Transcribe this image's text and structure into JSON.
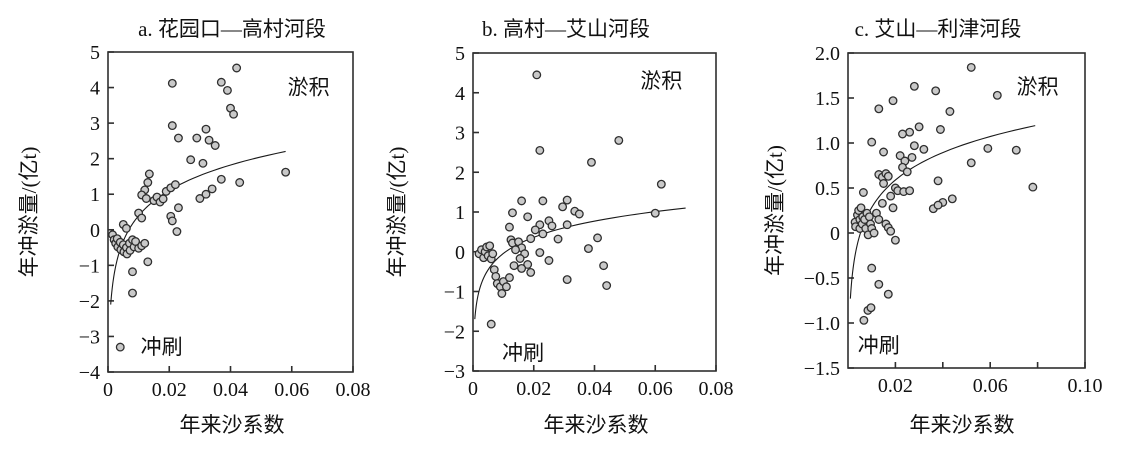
{
  "figure_labels": {
    "xlabel": "年来沙系数",
    "ylabel": "年冲淤量/(亿t)",
    "deposition": "淤积",
    "scour": "冲刷"
  },
  "colors": {
    "background": "#ffffff",
    "marker_fill": "#c9c9c9",
    "marker_stroke": "#2e2e2e",
    "curve": "#1a1a1a",
    "axis": "#2f2f2f",
    "text": "#111111"
  },
  "chart_data": [
    {
      "id": "a",
      "type": "scatter",
      "title": "a. 花园口—高村河段",
      "xlabel": "年来沙系数",
      "ylabel": "年冲淤量/(亿t)",
      "xlim": [
        0,
        0.08
      ],
      "ylim": [
        -4,
        5
      ],
      "grid": false,
      "legend": "none",
      "x_ticks": [
        {
          "v": 0,
          "label": "0"
        },
        {
          "v": 0.02,
          "label": "0.02"
        },
        {
          "v": 0.04,
          "label": "0.04"
        },
        {
          "v": 0.06,
          "label": "0.06"
        },
        {
          "v": 0.08,
          "label": "0.08"
        }
      ],
      "y_ticks": [
        {
          "v": 5,
          "label": "5"
        },
        {
          "v": 4,
          "label": "4"
        },
        {
          "v": 3,
          "label": "3"
        },
        {
          "v": 2,
          "label": "2"
        },
        {
          "v": 1,
          "label": "1"
        },
        {
          "v": 0,
          "label": "0"
        },
        {
          "v": -1,
          "label": "−1"
        },
        {
          "v": -2,
          "label": "−2"
        },
        {
          "v": -3,
          "label": "−3"
        },
        {
          "v": -4,
          "label": "−4"
        }
      ],
      "points": [
        [
          0.021,
          4.12
        ],
        [
          0.037,
          4.15
        ],
        [
          0.042,
          4.55
        ],
        [
          0.039,
          3.92
        ],
        [
          0.04,
          3.42
        ],
        [
          0.041,
          3.25
        ],
        [
          0.021,
          2.93
        ],
        [
          0.023,
          2.58
        ],
        [
          0.029,
          2.58
        ],
        [
          0.032,
          2.83
        ],
        [
          0.033,
          2.52
        ],
        [
          0.035,
          2.37
        ],
        [
          0.027,
          1.97
        ],
        [
          0.031,
          1.87
        ],
        [
          0.034,
          1.15
        ],
        [
          0.037,
          1.42
        ],
        [
          0.043,
          1.33
        ],
        [
          0.058,
          1.62
        ],
        [
          0.0135,
          1.57
        ],
        [
          0.013,
          1.33
        ],
        [
          0.012,
          1.12
        ],
        [
          0.011,
          0.98
        ],
        [
          0.0125,
          0.88
        ],
        [
          0.015,
          0.82
        ],
        [
          0.016,
          0.92
        ],
        [
          0.017,
          0.78
        ],
        [
          0.018,
          0.87
        ],
        [
          0.019,
          1.08
        ],
        [
          0.0205,
          1.18
        ],
        [
          0.022,
          1.27
        ],
        [
          0.03,
          0.88
        ],
        [
          0.032,
          1.0
        ],
        [
          0.023,
          0.62
        ],
        [
          0.0205,
          0.38
        ],
        [
          0.021,
          0.25
        ],
        [
          0.0225,
          -0.05
        ],
        [
          0.01,
          0.47
        ],
        [
          0.011,
          0.33
        ],
        [
          0.005,
          0.15
        ],
        [
          0.006,
          0.04
        ],
        [
          0.0015,
          -0.14
        ],
        [
          0.002,
          -0.28
        ],
        [
          0.0025,
          -0.38
        ],
        [
          0.003,
          -0.25
        ],
        [
          0.0032,
          -0.48
        ],
        [
          0.004,
          -0.35
        ],
        [
          0.0042,
          -0.56
        ],
        [
          0.005,
          -0.42
        ],
        [
          0.0052,
          -0.62
        ],
        [
          0.006,
          -0.5
        ],
        [
          0.0062,
          -0.68
        ],
        [
          0.007,
          -0.38
        ],
        [
          0.0072,
          -0.58
        ],
        [
          0.008,
          -0.28
        ],
        [
          0.0085,
          -0.48
        ],
        [
          0.009,
          -0.33
        ],
        [
          0.01,
          -0.52
        ],
        [
          0.011,
          -0.45
        ],
        [
          0.012,
          -0.38
        ],
        [
          0.013,
          -0.9
        ],
        [
          0.008,
          -1.18
        ],
        [
          0.008,
          -1.78
        ],
        [
          0.004,
          -3.3
        ]
      ],
      "trend": {
        "type": "log",
        "a": 1.028,
        "b": 5.13,
        "x_start": 0.00088,
        "x_end": 0.058
      },
      "annotations": [
        {
          "text": "淤积",
          "x": 0.0655,
          "y": 4.0
        },
        {
          "text": "冲刷",
          "x": 0.0175,
          "y": -3.3
        }
      ]
    },
    {
      "id": "b",
      "type": "scatter",
      "title": "b. 高村—艾山河段",
      "xlabel": "年来沙系数",
      "ylabel": "年冲淤量/(亿t)",
      "xlim": [
        0,
        0.08
      ],
      "ylim": [
        -3,
        5
      ],
      "grid": false,
      "legend": "none",
      "x_ticks": [
        {
          "v": 0,
          "label": "0"
        },
        {
          "v": 0.02,
          "label": "0.02"
        },
        {
          "v": 0.04,
          "label": "0.04"
        },
        {
          "v": 0.06,
          "label": "0.06"
        },
        {
          "v": 0.08,
          "label": "0.08"
        }
      ],
      "y_ticks": [
        {
          "v": 5,
          "label": "5"
        },
        {
          "v": 4,
          "label": "4"
        },
        {
          "v": 3,
          "label": "3"
        },
        {
          "v": 2,
          "label": "2"
        },
        {
          "v": 1,
          "label": "1"
        },
        {
          "v": 0,
          "label": "0"
        },
        {
          "v": -1,
          "label": "−1"
        },
        {
          "v": -2,
          "label": "−2"
        },
        {
          "v": -3,
          "label": "−3"
        }
      ],
      "points": [
        [
          0.021,
          4.45
        ],
        [
          0.048,
          2.8
        ],
        [
          0.022,
          2.55
        ],
        [
          0.039,
          2.25
        ],
        [
          0.062,
          1.7
        ],
        [
          0.06,
          0.97
        ],
        [
          0.016,
          1.28
        ],
        [
          0.023,
          1.28
        ],
        [
          0.0295,
          1.13
        ],
        [
          0.031,
          1.3
        ],
        [
          0.0335,
          1.02
        ],
        [
          0.013,
          0.98
        ],
        [
          0.018,
          0.88
        ],
        [
          0.035,
          0.95
        ],
        [
          0.012,
          0.62
        ],
        [
          0.022,
          0.68
        ],
        [
          0.025,
          0.78
        ],
        [
          0.026,
          0.65
        ],
        [
          0.031,
          0.68
        ],
        [
          0.0205,
          0.55
        ],
        [
          0.023,
          0.45
        ],
        [
          0.019,
          0.33
        ],
        [
          0.028,
          0.32
        ],
        [
          0.041,
          0.35
        ],
        [
          0.038,
          0.08
        ],
        [
          0.0125,
          0.3
        ],
        [
          0.013,
          0.22
        ],
        [
          0.015,
          0.25
        ],
        [
          0.016,
          0.1
        ],
        [
          0.014,
          0.05
        ],
        [
          0.017,
          -0.05
        ],
        [
          0.0155,
          -0.17
        ],
        [
          0.022,
          -0.02
        ],
        [
          0.018,
          -0.32
        ],
        [
          0.0135,
          -0.35
        ],
        [
          0.016,
          -0.42
        ],
        [
          0.019,
          -0.52
        ],
        [
          0.025,
          -0.22
        ],
        [
          0.031,
          -0.7
        ],
        [
          0.043,
          -0.35
        ],
        [
          0.044,
          -0.85
        ],
        [
          0.002,
          -0.05
        ],
        [
          0.0028,
          0.05
        ],
        [
          0.0035,
          -0.15
        ],
        [
          0.004,
          0.0
        ],
        [
          0.0045,
          0.12
        ],
        [
          0.005,
          -0.1
        ],
        [
          0.0055,
          0.15
        ],
        [
          0.006,
          -0.18
        ],
        [
          0.0065,
          -0.05
        ],
        [
          0.007,
          -0.45
        ],
        [
          0.0075,
          -0.62
        ],
        [
          0.008,
          -0.8
        ],
        [
          0.009,
          -0.88
        ],
        [
          0.0095,
          -1.05
        ],
        [
          0.01,
          -0.75
        ],
        [
          0.011,
          -0.88
        ],
        [
          0.012,
          -0.65
        ],
        [
          0.006,
          -1.82
        ]
      ],
      "trend": {
        "type": "log",
        "a": 0.587,
        "b": 2.66,
        "x_start": 0.0006,
        "x_end": 0.07
      },
      "annotations": [
        {
          "text": "淤积",
          "x": 0.062,
          "y": 4.3
        },
        {
          "text": "冲刷",
          "x": 0.0165,
          "y": -2.55
        }
      ]
    },
    {
      "id": "c",
      "type": "scatter",
      "title": "c. 艾山—利津河段",
      "xlabel": "年来沙系数",
      "ylabel": "年冲淤量/(亿t)",
      "xlim": [
        0,
        0.1
      ],
      "ylim": [
        -1.5,
        2.0
      ],
      "grid": false,
      "legend": "none",
      "x_ticks": [
        {
          "v": 0.02,
          "label": "0.02"
        },
        {
          "v": 0.04,
          "label": ""
        },
        {
          "v": 0.06,
          "label": "0.06"
        },
        {
          "v": 0.08,
          "label": ""
        },
        {
          "v": 0.1,
          "label": "0.10"
        }
      ],
      "y_ticks": [
        {
          "v": 2.0,
          "label": "2.0"
        },
        {
          "v": 1.5,
          "label": "1.5"
        },
        {
          "v": 1.0,
          "label": "1.0"
        },
        {
          "v": 0.5,
          "label": "0.5"
        },
        {
          "v": 0,
          "label": "0"
        },
        {
          "v": -0.5,
          "label": "−0.5"
        },
        {
          "v": -1.0,
          "label": "−1.0"
        },
        {
          "v": -1.5,
          "label": "−1.5"
        }
      ],
      "points": [
        [
          0.052,
          1.84
        ],
        [
          0.028,
          1.63
        ],
        [
          0.037,
          1.58
        ],
        [
          0.063,
          1.53
        ],
        [
          0.019,
          1.47
        ],
        [
          0.013,
          1.38
        ],
        [
          0.043,
          1.35
        ],
        [
          0.03,
          1.18
        ],
        [
          0.026,
          1.12
        ],
        [
          0.023,
          1.1
        ],
        [
          0.039,
          1.15
        ],
        [
          0.01,
          1.01
        ],
        [
          0.028,
          0.97
        ],
        [
          0.032,
          0.93
        ],
        [
          0.059,
          0.94
        ],
        [
          0.071,
          0.92
        ],
        [
          0.015,
          0.9
        ],
        [
          0.022,
          0.86
        ],
        [
          0.027,
          0.84
        ],
        [
          0.024,
          0.8
        ],
        [
          0.052,
          0.78
        ],
        [
          0.023,
          0.73
        ],
        [
          0.025,
          0.68
        ],
        [
          0.013,
          0.65
        ],
        [
          0.0145,
          0.62
        ],
        [
          0.016,
          0.66
        ],
        [
          0.017,
          0.63
        ],
        [
          0.015,
          0.55
        ],
        [
          0.038,
          0.58
        ],
        [
          0.078,
          0.51
        ],
        [
          0.02,
          0.5
        ],
        [
          0.021,
          0.47
        ],
        [
          0.0235,
          0.46
        ],
        [
          0.026,
          0.47
        ],
        [
          0.0065,
          0.45
        ],
        [
          0.018,
          0.41
        ],
        [
          0.0145,
          0.33
        ],
        [
          0.044,
          0.38
        ],
        [
          0.04,
          0.34
        ],
        [
          0.036,
          0.27
        ],
        [
          0.038,
          0.31
        ],
        [
          0.019,
          0.28
        ],
        [
          0.02,
          -0.08
        ],
        [
          0.003,
          0.12
        ],
        [
          0.0032,
          0.07
        ],
        [
          0.004,
          0.2
        ],
        [
          0.0045,
          0.25
        ],
        [
          0.005,
          0.15
        ],
        [
          0.005,
          0.05
        ],
        [
          0.0055,
          0.28
        ],
        [
          0.006,
          0.1
        ],
        [
          0.0062,
          0.18
        ],
        [
          0.007,
          0.15
        ],
        [
          0.0075,
          0.05
        ],
        [
          0.008,
          0.22
        ],
        [
          0.0085,
          -0.02
        ],
        [
          0.009,
          0.18
        ],
        [
          0.0095,
          0.1
        ],
        [
          0.01,
          0.05
        ],
        [
          0.011,
          0.0
        ],
        [
          0.012,
          0.22
        ],
        [
          0.013,
          0.15
        ],
        [
          0.016,
          0.1
        ],
        [
          0.017,
          0.06
        ],
        [
          0.018,
          0.02
        ],
        [
          0.01,
          -0.39
        ],
        [
          0.013,
          -0.57
        ],
        [
          0.017,
          -0.68
        ],
        [
          0.0084,
          -0.86
        ],
        [
          0.0097,
          -0.83
        ],
        [
          0.0067,
          -0.97
        ]
      ],
      "trend": {
        "type": "log",
        "a": 0.44,
        "b": 2.31,
        "x_start": 0.001,
        "x_end": 0.079
      },
      "annotations": [
        {
          "text": "淤积",
          "x": 0.08,
          "y": 1.62
        },
        {
          "text": "冲刷",
          "x": 0.013,
          "y": -1.25
        }
      ]
    }
  ]
}
